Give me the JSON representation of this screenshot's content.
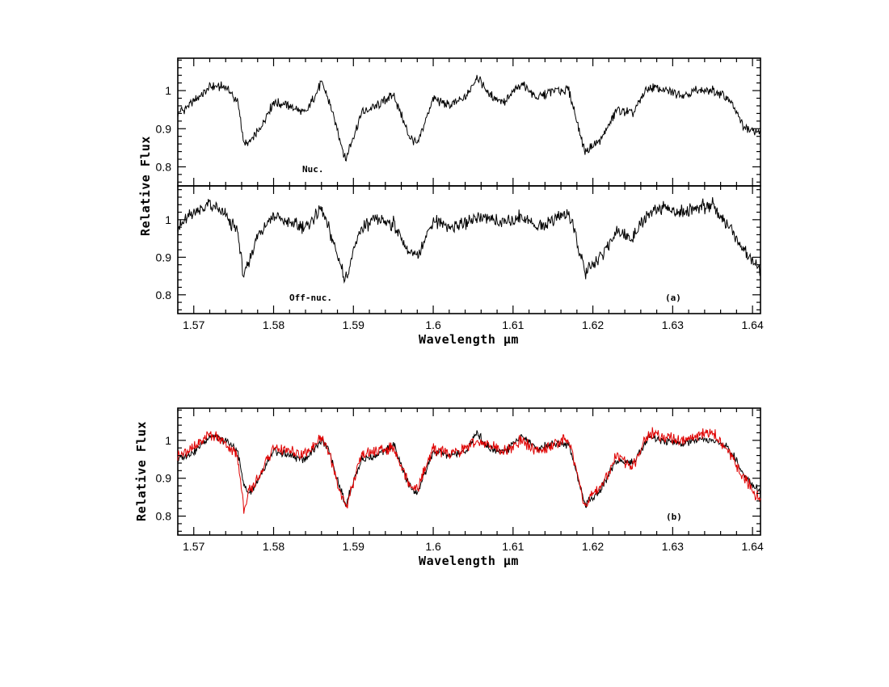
{
  "chart_data": [
    {
      "panel": "a",
      "type": "line",
      "annotation": "(a)",
      "xlabel": "Wavelength μm",
      "ylabel": "Relative Flux",
      "xlim": [
        1.568,
        1.641
      ],
      "x_ticks": [
        "1.57",
        "1.58",
        "1.59",
        "1.6",
        "1.61",
        "1.62",
        "1.63",
        "1.64"
      ],
      "subpanels": [
        {
          "label": "Nuc.",
          "ylim": [
            0.75,
            1.085
          ],
          "y_ticks": [
            "0.8",
            "0.9",
            "1"
          ],
          "series": [
            {
              "color": "#000000",
              "x": [
                1.568,
                1.57,
                1.572,
                1.574,
                1.5755,
                1.5763,
                1.5768,
                1.578,
                1.58,
                1.582,
                1.584,
                1.586,
                1.587,
                1.589,
                1.591,
                1.593,
                1.595,
                1.597,
                1.598,
                1.6,
                1.602,
                1.604,
                1.6055,
                1.607,
                1.609,
                1.611,
                1.613,
                1.615,
                1.617,
                1.619,
                1.621,
                1.623,
                1.625,
                1.627,
                1.629,
                1.631,
                1.633,
                1.635,
                1.637,
                1.639,
                1.641
              ],
              "y": [
                0.94,
                0.97,
                1.01,
                1.01,
                0.97,
                0.86,
                0.86,
                0.89,
                0.97,
                0.96,
                0.94,
                1.02,
                0.97,
                0.82,
                0.94,
                0.96,
                0.99,
                0.88,
                0.86,
                0.98,
                0.96,
                0.98,
                1.04,
                0.99,
                0.97,
                1.02,
                0.98,
                1.0,
                1.0,
                0.84,
                0.87,
                0.95,
                0.94,
                1.01,
                1.0,
                0.99,
                1.0,
                1.0,
                0.98,
                0.9,
                0.89
              ]
            }
          ]
        },
        {
          "label": "Off-nuc.",
          "ylim": [
            0.75,
            1.09
          ],
          "y_ticks": [
            "0.8",
            "0.9",
            "1"
          ],
          "series": [
            {
              "color": "#000000",
              "x": [
                1.568,
                1.57,
                1.572,
                1.574,
                1.5755,
                1.5763,
                1.5768,
                1.578,
                1.58,
                1.582,
                1.584,
                1.586,
                1.587,
                1.589,
                1.591,
                1.593,
                1.595,
                1.597,
                1.598,
                1.6,
                1.602,
                1.604,
                1.6055,
                1.607,
                1.609,
                1.611,
                1.613,
                1.615,
                1.617,
                1.619,
                1.621,
                1.623,
                1.625,
                1.627,
                1.629,
                1.631,
                1.633,
                1.635,
                1.637,
                1.639,
                1.641
              ],
              "y": [
                0.98,
                1.02,
                1.04,
                1.01,
                0.97,
                0.84,
                0.88,
                0.96,
                1.01,
                0.99,
                0.98,
                1.03,
                0.97,
                0.84,
                0.98,
                1.0,
                0.99,
                0.91,
                0.9,
                1.0,
                0.98,
                0.99,
                1.01,
                1.0,
                0.99,
                1.01,
                0.98,
                1.0,
                1.02,
                0.86,
                0.9,
                0.97,
                0.95,
                1.02,
                1.03,
                1.02,
                1.03,
                1.04,
                0.98,
                0.92,
                0.86
              ]
            }
          ]
        }
      ]
    },
    {
      "panel": "b",
      "type": "line",
      "annotation": "(b)",
      "xlabel": "Wavelength μm",
      "ylabel": "Relative Flux",
      "xlim": [
        1.568,
        1.641
      ],
      "ylim": [
        0.75,
        1.085
      ],
      "x_ticks": [
        "1.57",
        "1.58",
        "1.59",
        "1.6",
        "1.61",
        "1.62",
        "1.63",
        "1.64"
      ],
      "y_ticks": [
        "0.8",
        "0.9",
        "1"
      ],
      "series": [
        {
          "color": "#000000",
          "x": [
            1.568,
            1.57,
            1.572,
            1.574,
            1.5755,
            1.5763,
            1.5768,
            1.578,
            1.58,
            1.582,
            1.584,
            1.586,
            1.587,
            1.589,
            1.591,
            1.593,
            1.595,
            1.597,
            1.598,
            1.6,
            1.602,
            1.604,
            1.6055,
            1.607,
            1.609,
            1.611,
            1.613,
            1.615,
            1.617,
            1.619,
            1.621,
            1.623,
            1.625,
            1.627,
            1.629,
            1.631,
            1.633,
            1.635,
            1.637,
            1.639,
            1.641
          ],
          "y": [
            0.95,
            0.97,
            1.01,
            1.0,
            0.97,
            0.88,
            0.86,
            0.89,
            0.97,
            0.96,
            0.95,
            1.0,
            0.97,
            0.83,
            0.95,
            0.96,
            0.99,
            0.88,
            0.86,
            0.97,
            0.96,
            0.97,
            1.02,
            0.98,
            0.97,
            1.01,
            0.98,
            0.99,
            0.99,
            0.83,
            0.87,
            0.95,
            0.94,
            1.01,
            1.0,
            0.99,
            1.0,
            1.0,
            0.98,
            0.91,
            0.86
          ]
        },
        {
          "color": "#e00000",
          "x": [
            1.568,
            1.57,
            1.572,
            1.574,
            1.5755,
            1.5763,
            1.5768,
            1.578,
            1.58,
            1.582,
            1.584,
            1.586,
            1.587,
            1.589,
            1.591,
            1.593,
            1.595,
            1.597,
            1.598,
            1.6,
            1.602,
            1.604,
            1.6055,
            1.607,
            1.609,
            1.611,
            1.613,
            1.615,
            1.617,
            1.619,
            1.621,
            1.623,
            1.625,
            1.627,
            1.629,
            1.631,
            1.633,
            1.635,
            1.637,
            1.639,
            1.641
          ],
          "y": [
            0.96,
            0.98,
            1.02,
            0.99,
            0.96,
            0.81,
            0.86,
            0.9,
            0.98,
            0.97,
            0.96,
            1.01,
            0.96,
            0.82,
            0.96,
            0.97,
            0.98,
            0.89,
            0.87,
            0.98,
            0.96,
            0.98,
            1.0,
            0.99,
            0.97,
            1.0,
            0.97,
            0.99,
            1.0,
            0.83,
            0.88,
            0.96,
            0.93,
            1.02,
            1.01,
            1.0,
            1.01,
            1.02,
            0.97,
            0.9,
            0.84
          ]
        }
      ]
    }
  ]
}
